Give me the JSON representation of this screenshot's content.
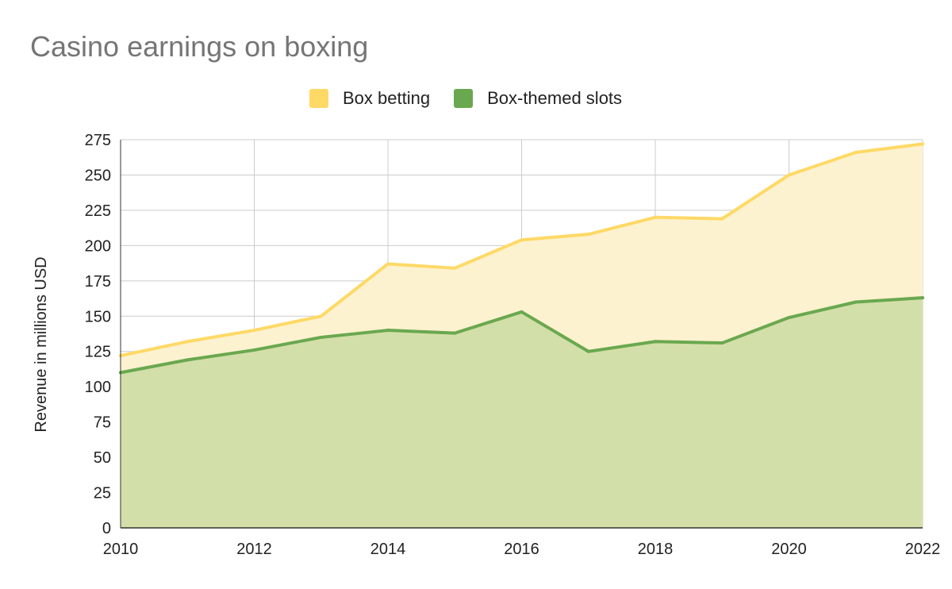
{
  "chart_data": {
    "type": "area",
    "title": "Casino earnings on boxing",
    "xlabel": "",
    "ylabel": "Revenue in millions USD",
    "x": [
      2010,
      2011,
      2012,
      2013,
      2014,
      2015,
      2016,
      2017,
      2018,
      2019,
      2020,
      2021,
      2022
    ],
    "x_tick_labels": [
      "2010",
      "2012",
      "2014",
      "2016",
      "2018",
      "2020",
      "2022"
    ],
    "y_tick_labels": [
      "0",
      "25",
      "50",
      "75",
      "100",
      "125",
      "150",
      "175",
      "200",
      "225",
      "250",
      "275"
    ],
    "xlim": [
      2010,
      2022
    ],
    "ylim": [
      0,
      275
    ],
    "grid": true,
    "legend_position": "top",
    "series": [
      {
        "name": "Box betting",
        "color": "#FFD966",
        "fill": "#FDF2CF",
        "values": [
          122,
          132,
          140,
          150,
          187,
          184,
          204,
          208,
          220,
          219,
          250,
          266,
          272
        ]
      },
      {
        "name": "Box-themed slots",
        "color": "#6AA84F",
        "fill": "#D3DFA8",
        "values": [
          110,
          119,
          126,
          135,
          140,
          138,
          153,
          125,
          132,
          131,
          149,
          160,
          163
        ]
      }
    ]
  }
}
